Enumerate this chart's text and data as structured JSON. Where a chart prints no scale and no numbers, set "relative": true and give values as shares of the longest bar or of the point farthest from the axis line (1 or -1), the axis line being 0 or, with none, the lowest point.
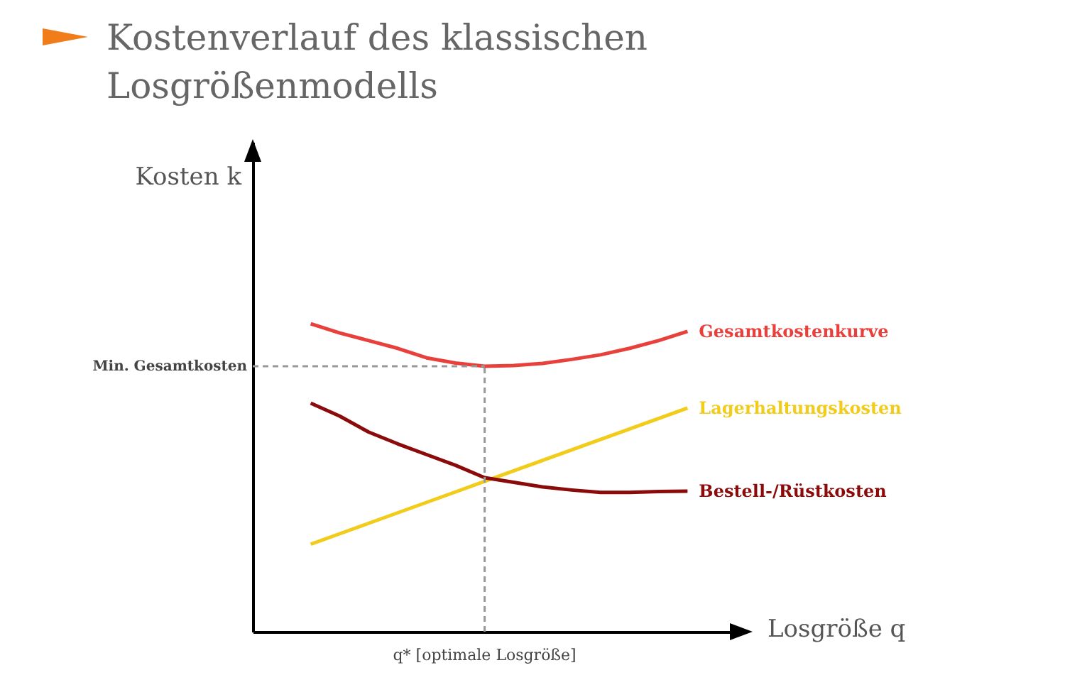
{
  "chart_data": {
    "type": "line",
    "title": "Kostenverlauf des klassischen Losgrößenmodells",
    "xlabel": "Losgröße q",
    "relative": true,
    "annotations": [
      "Kosten k",
      "q* [optimale Losgröße]"
    ],
    "categories": [
      null,
      null,
      null,
      null,
      null,
      null,
      null,
      null,
      null,
      null,
      null,
      null,
      null,
      null,
      null,
      null,
      null,
      null
    ],
    "series": [
      {
        "name": "Gesamtkostenkurve",
        "color": "#e8413c",
        "values": [
          null,
          null,
          1.0,
          0.97,
          0.945,
          0.92,
          0.889,
          0.872,
          0.862,
          0.864,
          0.871,
          0.884,
          0.899,
          0.92,
          0.945,
          0.975,
          null,
          null
        ]
      },
      {
        "name": "Lagerhaltungskosten",
        "color": "#f2cc1b",
        "values": [
          null,
          null,
          0.284,
          0.318,
          0.352,
          0.386,
          0.42,
          0.454,
          0.488,
          0.522,
          0.556,
          0.59,
          0.624,
          0.658,
          0.692,
          0.726,
          null,
          null
        ]
      },
      {
        "name": "Bestell-/Rüstkosten",
        "color": "#8b0a0a",
        "values": [
          null,
          null,
          0.742,
          0.7,
          0.648,
          0.61,
          0.575,
          0.54,
          0.5,
          0.485,
          0.47,
          0.46,
          0.452,
          0.452,
          0.455,
          0.456,
          null,
          null
        ]
      }
    ],
    "ref_lines": [
      {
        "axis": "y",
        "value": 0.862,
        "label": "Min. Gesamtkosten",
        "color": "#999999",
        "line_style": "dashed"
      }
    ]
  }
}
